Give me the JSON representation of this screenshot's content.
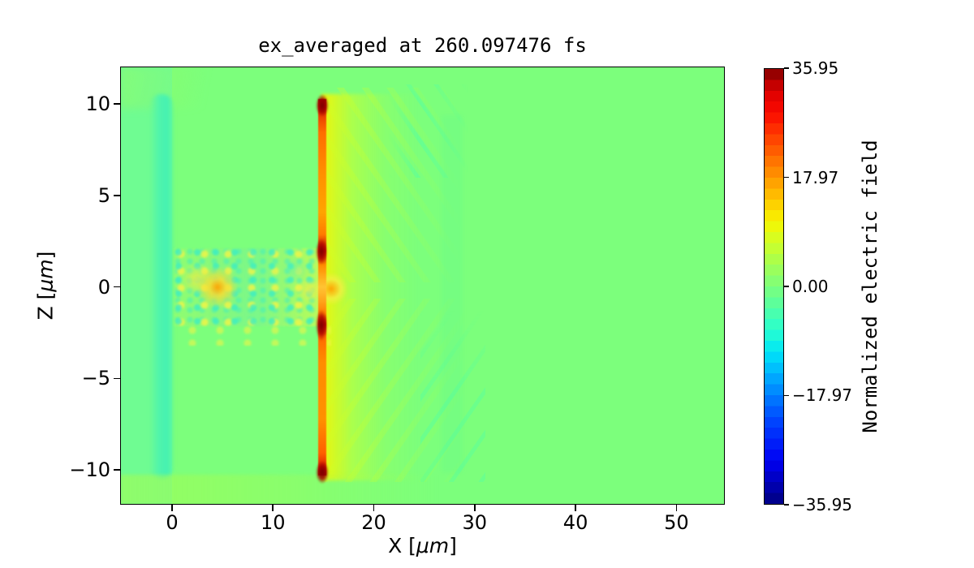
{
  "title": "ex_averaged at 260.097476 fs",
  "x_axis": {
    "label_pre": "X [",
    "label_unit": "μm",
    "label_post": "]",
    "tick_labels": [
      "0",
      "10",
      "20",
      "30",
      "40",
      "50"
    ],
    "tick_values": [
      0,
      10,
      20,
      30,
      40,
      50
    ],
    "min": -5.15,
    "max": 54.8
  },
  "y_axis": {
    "label_pre": "Z [",
    "label_unit": "μm",
    "label_post": "]",
    "tick_labels": [
      "10",
      "5",
      "0",
      "−5",
      "−10"
    ],
    "tick_values": [
      10,
      5,
      0,
      -5,
      -10
    ],
    "min": -11.9,
    "max": 12.05
  },
  "colorbar": {
    "label": "Normalized electric field",
    "tick_labels": [
      "35.95",
      "17.97",
      "0.00",
      "−17.97",
      "−35.95"
    ],
    "tick_values": [
      35.95,
      17.97,
      0.0,
      -17.97,
      -35.95
    ],
    "vmin": -35.95,
    "vmax": 35.95,
    "n_bands": 40,
    "colormap": "jet",
    "stops": [
      [
        0,
        "#000080"
      ],
      [
        0.1,
        "#0000F3"
      ],
      [
        0.2,
        "#004DFF"
      ],
      [
        0.3,
        "#00B3FF"
      ],
      [
        0.35,
        "#00E6F7"
      ],
      [
        0.4,
        "#29FFCE"
      ],
      [
        0.45,
        "#52FFA4"
      ],
      [
        0.5,
        "#7CFF7C"
      ],
      [
        0.55,
        "#A4FF52"
      ],
      [
        0.6,
        "#CEFF29"
      ],
      [
        0.65,
        "#F7F500"
      ],
      [
        0.7,
        "#FFC600"
      ],
      [
        0.75,
        "#FF9700"
      ],
      [
        0.8,
        "#FF6800"
      ],
      [
        0.85,
        "#FF3900"
      ],
      [
        0.9,
        "#F90900"
      ],
      [
        0.95,
        "#DC0000"
      ],
      [
        1,
        "#800000"
      ]
    ]
  },
  "chart_data": {
    "type": "heatmap",
    "title": "ex_averaged at 260.097476 fs",
    "xlabel": "X [μm]",
    "ylabel": "Z [μm]",
    "xlim": [
      -5.15,
      54.8
    ],
    "ylim": [
      -11.9,
      12.05
    ],
    "colorbar_label": "Normalized electric field",
    "value_range": [
      -35.95,
      35.95
    ],
    "grid": false,
    "legend": "colorbar-right",
    "colors": {
      "background_zero_field": "#7CFF7C",
      "negative_teal": "#45F1B2",
      "hot_sheet_core": "#FF7A00",
      "hot_spots": "#7A0000",
      "halo_yellow": "#F7F500"
    },
    "regions": [
      {
        "name": "uniform background",
        "x_range": [
          -5.15,
          54.8
        ],
        "z_range": [
          -11.9,
          12.05
        ],
        "value": 0.0
      },
      {
        "name": "negative teal band behind target",
        "x_range": [
          -2.2,
          -0.2
        ],
        "z_range": [
          -10.3,
          10.5
        ],
        "value": -4
      },
      {
        "name": "speckled plasma channel",
        "x_range": [
          0,
          15
        ],
        "z_range": [
          -1.9,
          1.9
        ],
        "value_range": [
          -8,
          12
        ]
      },
      {
        "name": "bright blob in channel",
        "x_range": [
          3.5,
          5.5
        ],
        "z_range": [
          -0.8,
          0.8
        ],
        "value": 18
      },
      {
        "name": "strong field sheet",
        "x_range": [
          14.6,
          15.4
        ],
        "z_range": [
          -10.2,
          10.3
        ],
        "value_range": [
          18,
          36
        ]
      },
      {
        "name": "sheet hot spots (max)",
        "points_xz": [
          [
            15,
            10.2
          ],
          [
            15,
            2.3
          ],
          [
            15,
            -2.0
          ],
          [
            15,
            -10.0
          ]
        ],
        "value": 35.95
      },
      {
        "name": "yellow halo right of sheet",
        "x_range": [
          15.4,
          22
        ],
        "z_range": [
          -10.5,
          10.5
        ],
        "value_range": [
          4,
          12
        ]
      },
      {
        "name": "streaked decaying wake",
        "x_range": [
          22,
          33
        ],
        "z_range": [
          -11,
          11
        ],
        "value_range": [
          0,
          4
        ]
      },
      {
        "name": "faint yellow wash below z=-10",
        "x_range": [
          -5,
          20
        ],
        "z_range": [
          -11.9,
          -10.2
        ],
        "value": 3
      }
    ]
  }
}
